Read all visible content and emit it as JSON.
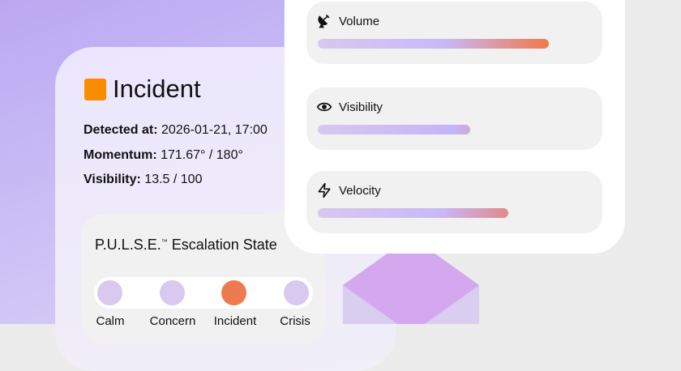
{
  "incident": {
    "title": "Incident",
    "status_color": "#fb8c00",
    "detected_label": "Detected at:",
    "detected_value": "2026-01-21, 17:00",
    "momentum_label": "Momentum:",
    "momentum_value": "171.67° / 180°",
    "visibility_label": "Visibility:",
    "visibility_value": "13.5 / 100"
  },
  "pulse": {
    "title": "P.U.L.S.E.",
    "tm": "™",
    "title_rest": " Escalation State",
    "states": [
      {
        "label": "Calm",
        "active": false
      },
      {
        "label": "Concern",
        "active": false
      },
      {
        "label": "Incident",
        "active": true
      },
      {
        "label": "Crisis",
        "active": false
      }
    ],
    "active_color": "#ed7b4f",
    "inactive_color": "#d9c9ee"
  },
  "metrics": [
    {
      "label": "Volume",
      "icon": "satellite-dish-icon",
      "level": 0.85
    },
    {
      "label": "Visibility",
      "icon": "eye-icon",
      "level": 0.56
    },
    {
      "label": "Velocity",
      "icon": "lightning-icon",
      "level": 0.7
    }
  ]
}
